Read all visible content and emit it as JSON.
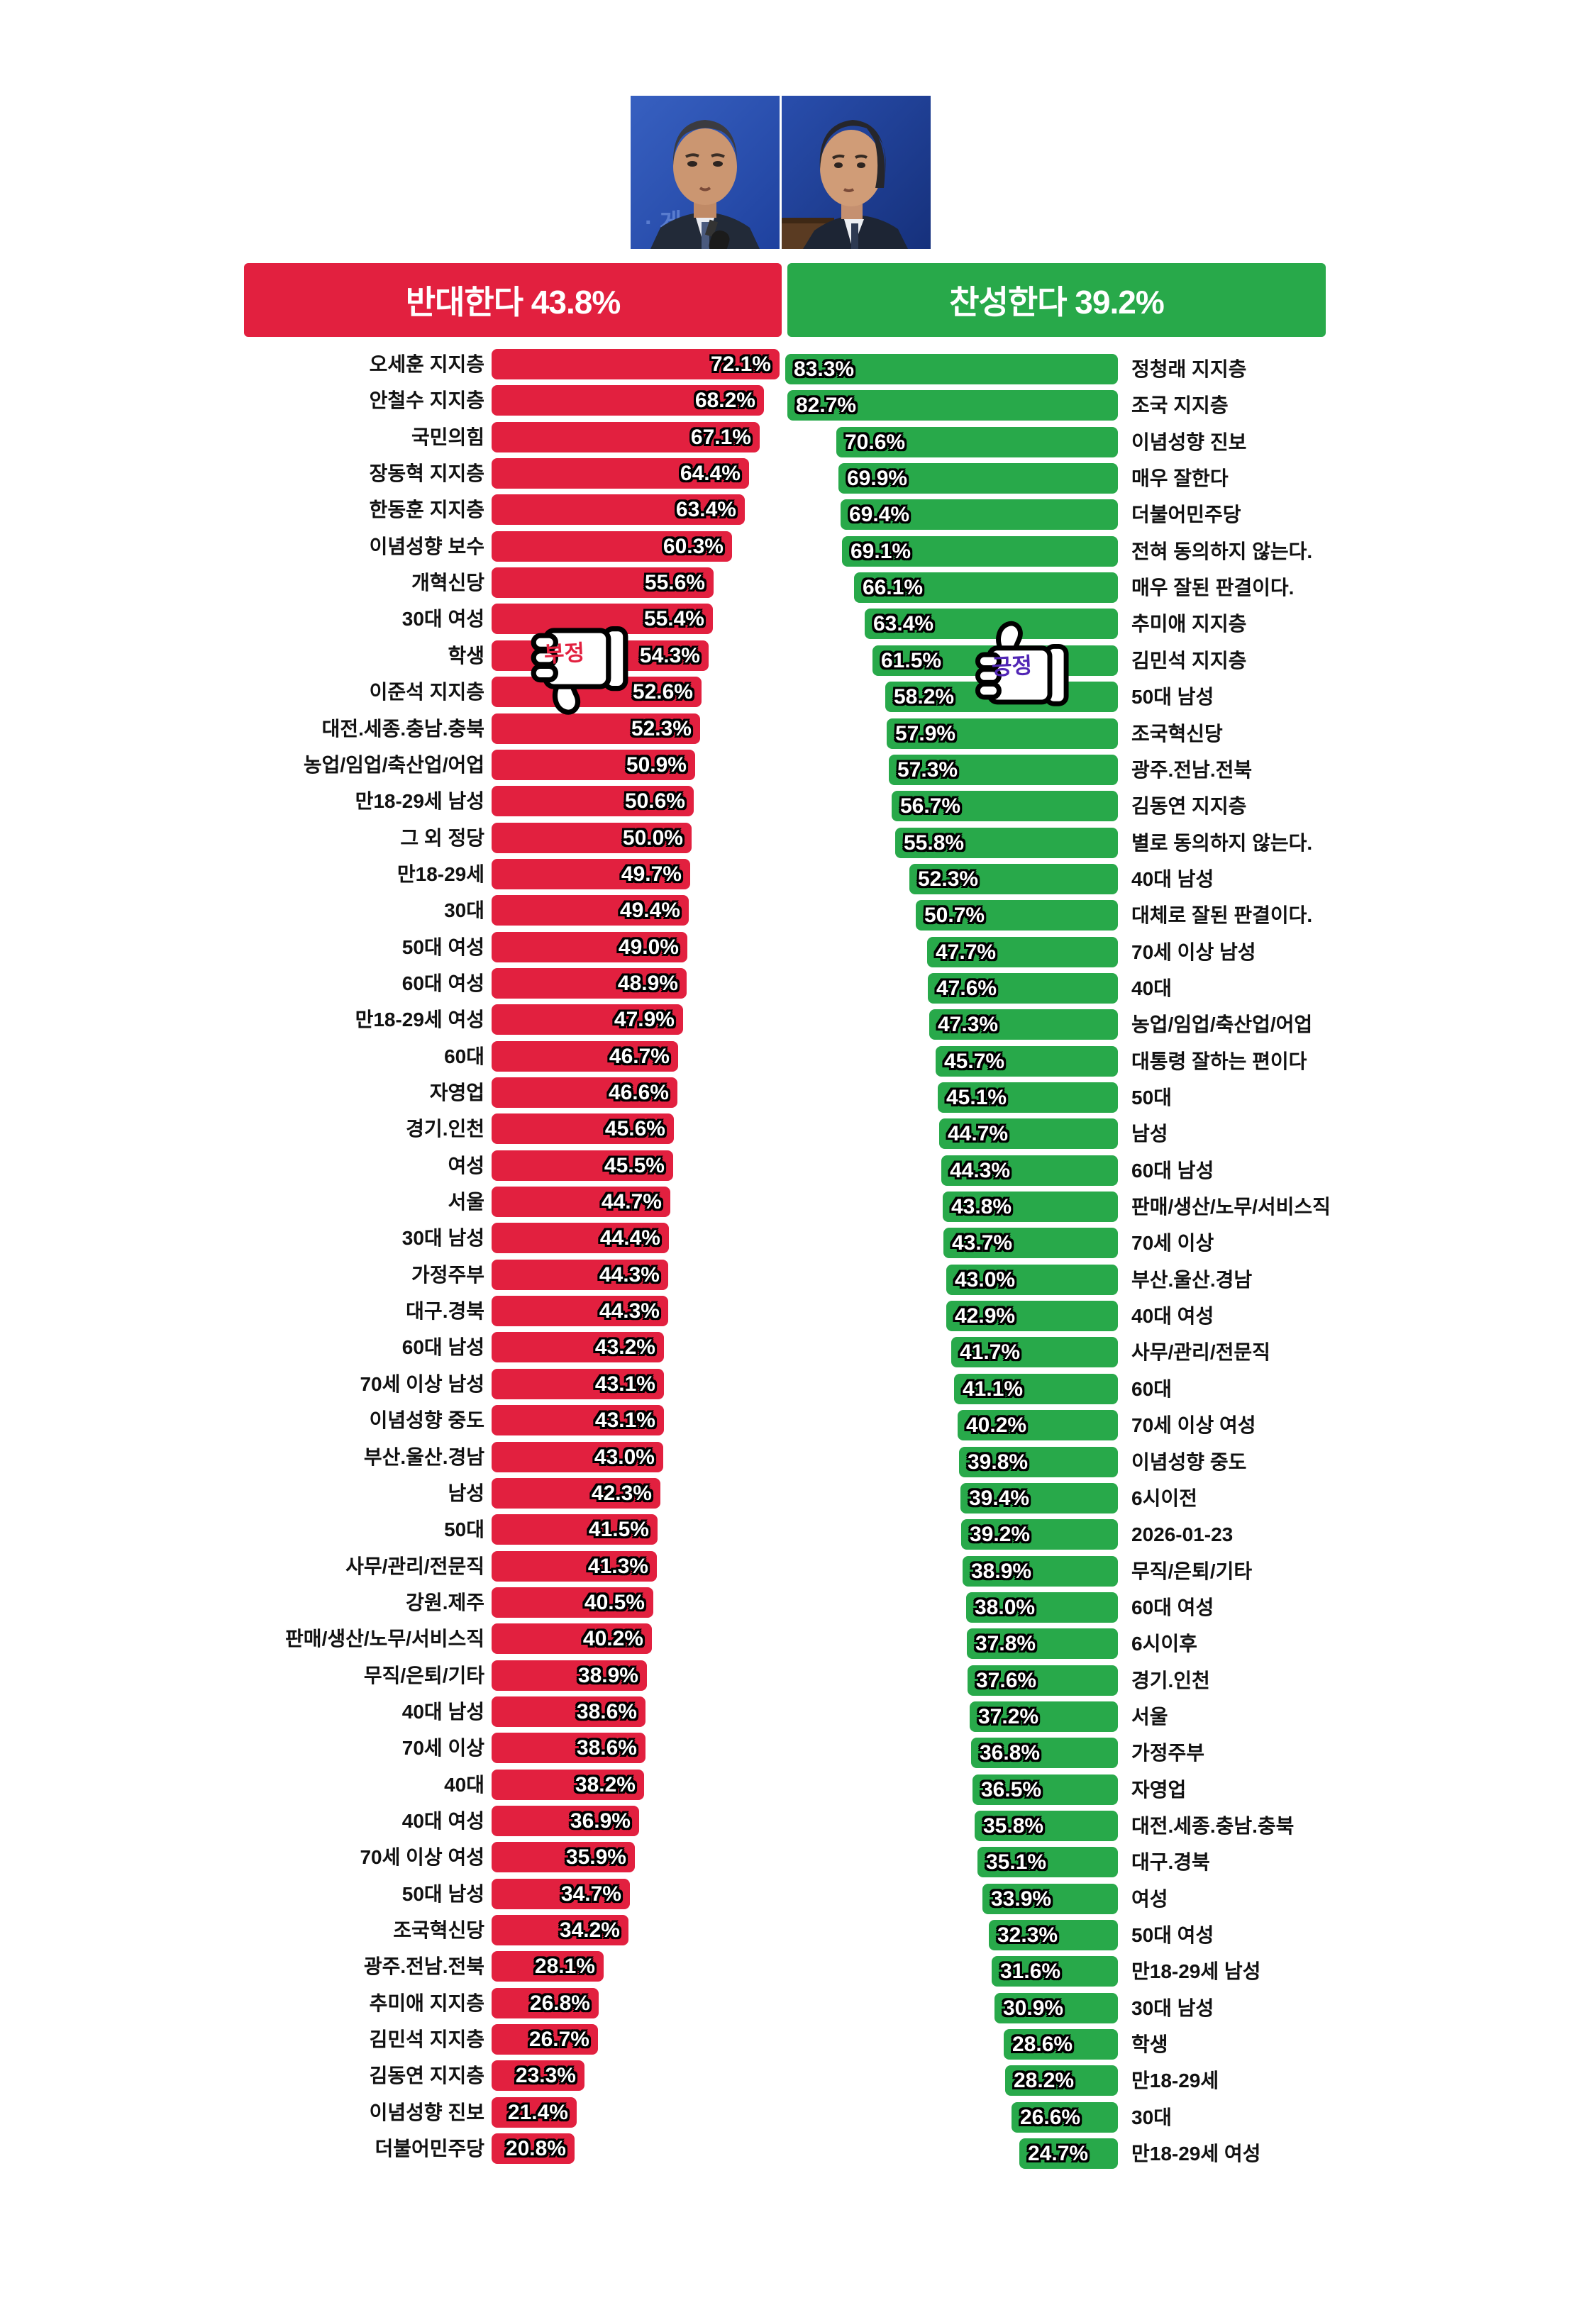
{
  "header": {
    "left_title": "반대한다 43.8%",
    "right_title": "찬성한다 39.2%"
  },
  "stamps": {
    "negative": "부정",
    "positive": "긍정",
    "negative_icon": "thumbs-down",
    "positive_icon": "thumbs-up"
  },
  "colors": {
    "red": "#e2203f",
    "green": "#28a94a",
    "negative_text": "#e2203f",
    "positive_text": "#5126b5",
    "photo_bg_left": "#2b52b0",
    "photo_bg_right": "#1d3f9c"
  },
  "chart_data": {
    "type": "bar",
    "orientation": "horizontal-tornado",
    "unit": "%",
    "xlim": [
      0,
      100
    ],
    "series": [
      {
        "name": "반대한다",
        "total": 43.8,
        "color": "#e2203f",
        "rows": [
          {
            "label": "오세훈 지지층",
            "value": 72.1
          },
          {
            "label": "안철수 지지층",
            "value": 68.2
          },
          {
            "label": "국민의힘",
            "value": 67.1
          },
          {
            "label": "장동혁 지지층",
            "value": 64.4
          },
          {
            "label": "한동훈 지지층",
            "value": 63.4
          },
          {
            "label": "이념성향 보수",
            "value": 60.3
          },
          {
            "label": "개혁신당",
            "value": 55.6
          },
          {
            "label": "30대 여성",
            "value": 55.4
          },
          {
            "label": "학생",
            "value": 54.3
          },
          {
            "label": "이준석 지지층",
            "value": 52.6
          },
          {
            "label": "대전.세종.충남.충북",
            "value": 52.3
          },
          {
            "label": "농업/임업/축산업/어업",
            "value": 50.9
          },
          {
            "label": "만18-29세 남성",
            "value": 50.6
          },
          {
            "label": "그 외 정당",
            "value": 50.0
          },
          {
            "label": "만18-29세",
            "value": 49.7
          },
          {
            "label": "30대",
            "value": 49.4
          },
          {
            "label": "50대 여성",
            "value": 49.0
          },
          {
            "label": "60대 여성",
            "value": 48.9
          },
          {
            "label": "만18-29세 여성",
            "value": 47.9
          },
          {
            "label": "60대",
            "value": 46.7
          },
          {
            "label": "자영업",
            "value": 46.6
          },
          {
            "label": "경기.인천",
            "value": 45.6
          },
          {
            "label": "여성",
            "value": 45.5
          },
          {
            "label": "서울",
            "value": 44.7
          },
          {
            "label": "30대 남성",
            "value": 44.4
          },
          {
            "label": "가정주부",
            "value": 44.3
          },
          {
            "label": "대구.경북",
            "value": 44.3
          },
          {
            "label": "60대 남성",
            "value": 43.2
          },
          {
            "label": "70세 이상 남성",
            "value": 43.1
          },
          {
            "label": "이념성향 중도",
            "value": 43.1
          },
          {
            "label": "부산.울산.경남",
            "value": 43.0
          },
          {
            "label": "남성",
            "value": 42.3
          },
          {
            "label": "50대",
            "value": 41.5
          },
          {
            "label": "사무/관리/전문직",
            "value": 41.3
          },
          {
            "label": "강원.제주",
            "value": 40.5
          },
          {
            "label": "판매/생산/노무/서비스직",
            "value": 40.2
          },
          {
            "label": "무직/은퇴/기타",
            "value": 38.9
          },
          {
            "label": "40대 남성",
            "value": 38.6
          },
          {
            "label": "70세 이상",
            "value": 38.6
          },
          {
            "label": "40대",
            "value": 38.2
          },
          {
            "label": "40대 여성",
            "value": 36.9
          },
          {
            "label": "70세 이상 여성",
            "value": 35.9
          },
          {
            "label": "50대 남성",
            "value": 34.7
          },
          {
            "label": "조국혁신당",
            "value": 34.2
          },
          {
            "label": "광주.전남.전북",
            "value": 28.1
          },
          {
            "label": "추미애 지지층",
            "value": 26.8
          },
          {
            "label": "김민석 지지층",
            "value": 26.7
          },
          {
            "label": "김동연 지지층",
            "value": 23.3
          },
          {
            "label": "이념성향 진보",
            "value": 21.4
          },
          {
            "label": "더불어민주당",
            "value": 20.8
          }
        ]
      },
      {
        "name": "찬성한다",
        "total": 39.2,
        "color": "#28a94a",
        "rows": [
          {
            "label": "정청래 지지층",
            "value": 83.3
          },
          {
            "label": "조국 지지층",
            "value": 82.7
          },
          {
            "label": "이념성향 진보",
            "value": 70.6
          },
          {
            "label": "매우 잘한다",
            "value": 69.9
          },
          {
            "label": "더불어민주당",
            "value": 69.4
          },
          {
            "label": "전혀 동의하지 않는다.",
            "value": 69.1
          },
          {
            "label": "매우 잘된 판결이다.",
            "value": 66.1
          },
          {
            "label": "추미애 지지층",
            "value": 63.4
          },
          {
            "label": "김민석 지지층",
            "value": 61.5
          },
          {
            "label": "50대 남성",
            "value": 58.2
          },
          {
            "label": "조국혁신당",
            "value": 57.9
          },
          {
            "label": "광주.전남.전북",
            "value": 57.3
          },
          {
            "label": "김동연 지지층",
            "value": 56.7
          },
          {
            "label": "별로 동의하지 않는다.",
            "value": 55.8
          },
          {
            "label": "40대 남성",
            "value": 52.3
          },
          {
            "label": "대체로 잘된 판결이다.",
            "value": 50.7
          },
          {
            "label": "70세 이상 남성",
            "value": 47.7
          },
          {
            "label": "40대",
            "value": 47.6
          },
          {
            "label": "농업/임업/축산업/어업",
            "value": 47.3
          },
          {
            "label": "대통령 잘하는 편이다",
            "value": 45.7
          },
          {
            "label": "50대",
            "value": 45.1
          },
          {
            "label": "남성",
            "value": 44.7
          },
          {
            "label": "60대 남성",
            "value": 44.3
          },
          {
            "label": "판매/생산/노무/서비스직",
            "value": 43.8
          },
          {
            "label": "70세 이상",
            "value": 43.7
          },
          {
            "label": "부산.울산.경남",
            "value": 43.0
          },
          {
            "label": "40대 여성",
            "value": 42.9
          },
          {
            "label": "사무/관리/전문직",
            "value": 41.7
          },
          {
            "label": "60대",
            "value": 41.1
          },
          {
            "label": "70세 이상 여성",
            "value": 40.2
          },
          {
            "label": "이념성향 중도",
            "value": 39.8
          },
          {
            "label": "6시이전",
            "value": 39.4
          },
          {
            "label": "2026-01-23",
            "value": 39.2
          },
          {
            "label": "무직/은퇴/기타",
            "value": 38.9
          },
          {
            "label": "60대 여성",
            "value": 38.0
          },
          {
            "label": "6시이후",
            "value": 37.8
          },
          {
            "label": "경기.인천",
            "value": 37.6
          },
          {
            "label": "서울",
            "value": 37.2
          },
          {
            "label": "가정주부",
            "value": 36.8
          },
          {
            "label": "자영업",
            "value": 36.5
          },
          {
            "label": "대전.세종.충남.충북",
            "value": 35.8
          },
          {
            "label": "대구.경북",
            "value": 35.1
          },
          {
            "label": "여성",
            "value": 33.9
          },
          {
            "label": "50대 여성",
            "value": 32.3
          },
          {
            "label": "만18-29세 남성",
            "value": 31.6
          },
          {
            "label": "30대 남성",
            "value": 30.9
          },
          {
            "label": "학생",
            "value": 28.6
          },
          {
            "label": "만18-29세",
            "value": 28.2
          },
          {
            "label": "30대",
            "value": 26.6
          },
          {
            "label": "만18-29세 여성",
            "value": 24.7
          }
        ]
      }
    ]
  }
}
